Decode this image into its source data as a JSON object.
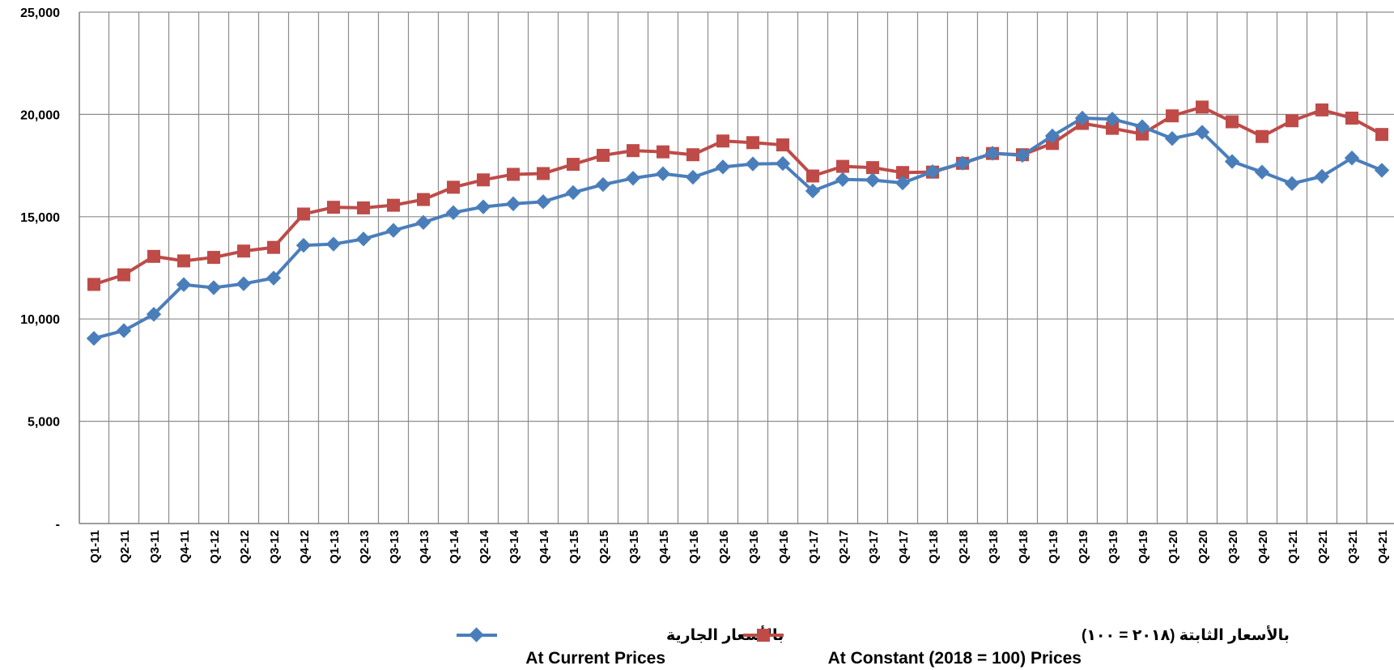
{
  "chart_data": {
    "type": "line",
    "categories": [
      "Q1-11",
      "Q2-11",
      "Q3-11",
      "Q4-11",
      "Q1-12",
      "Q2-12",
      "Q3-12",
      "Q4-12",
      "Q1-13",
      "Q2-13",
      "Q3-13",
      "Q4-13",
      "Q1-14",
      "Q2-14",
      "Q3-14",
      "Q4-14",
      "Q1-15",
      "Q2-15",
      "Q3-15",
      "Q4-15",
      "Q1-16",
      "Q2-16",
      "Q3-16",
      "Q4-16",
      "Q1-17",
      "Q2-17",
      "Q3-17",
      "Q4-17",
      "Q1-18",
      "Q2-18",
      "Q3-18",
      "Q4-18",
      "Q1-19",
      "Q2-19",
      "Q3-19",
      "Q4-19",
      "Q1-20",
      "Q2-20",
      "Q3-20",
      "Q4-20",
      "Q1-21",
      "Q2-21",
      "Q3-21",
      "Q4-21"
    ],
    "series": [
      {
        "name": "At Current Prices",
        "name_ar": "بالأسعار الجارية",
        "color": "#4a7ebb",
        "marker": "diamond",
        "values": [
          9050,
          9430,
          10230,
          11680,
          11530,
          11720,
          12000,
          13600,
          13660,
          13910,
          14330,
          14720,
          15200,
          15480,
          15630,
          15730,
          16180,
          16570,
          16880,
          17100,
          16930,
          17430,
          17580,
          17600,
          16260,
          16820,
          16790,
          16650,
          17200,
          17620,
          18100,
          18000,
          18950,
          19820,
          19770,
          19400,
          18820,
          19130,
          17700,
          17180,
          16620,
          16970,
          17870,
          17270
        ]
      },
      {
        "name": "At Constant (2018 = 100) Prices",
        "name_ar": "بالأسعار الثابتة (٢٠١٨ = ١٠٠)",
        "color": "#be4b48",
        "marker": "square",
        "values": [
          11690,
          12160,
          13060,
          12840,
          13010,
          13320,
          13500,
          15130,
          15460,
          15430,
          15560,
          15840,
          16440,
          16800,
          17070,
          17110,
          17560,
          18000,
          18230,
          18170,
          18030,
          18700,
          18620,
          18510,
          16990,
          17460,
          17400,
          17160,
          17180,
          17610,
          18090,
          18030,
          18580,
          19560,
          19320,
          19040,
          19930,
          20360,
          19640,
          18920,
          19690,
          20220,
          19820,
          19020
        ]
      }
    ],
    "ylim": [
      0,
      25000
    ],
    "y_ticks": [
      {
        "value": 0,
        "label": "-"
      },
      {
        "value": 5000,
        "label": "5,000"
      },
      {
        "value": 10000,
        "label": "10,000"
      },
      {
        "value": 15000,
        "label": "15,000"
      },
      {
        "value": 20000,
        "label": "20,000"
      },
      {
        "value": 25000,
        "label": "25,000"
      }
    ],
    "title": "",
    "xlabel": "",
    "ylabel": "",
    "grid": true,
    "legend_position": "bottom-center"
  }
}
